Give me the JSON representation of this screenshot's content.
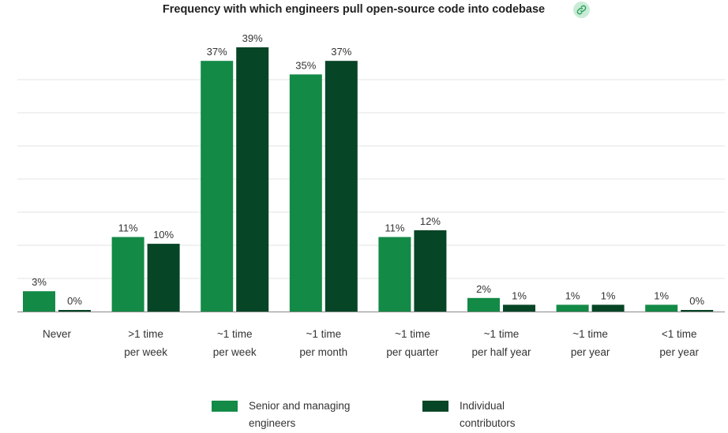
{
  "header": {
    "title": "Frequency with which engineers pull open-source code into codebase",
    "link_icon": "link-icon"
  },
  "colors": {
    "senior": "#138a46",
    "ic": "#064526",
    "grid": "#e3e3e3",
    "baseline": "#8a8a8a",
    "link_bg": "#c9ecd6",
    "link_icon": "#2a9d5c"
  },
  "legend": [
    {
      "lines": [
        "Senior and managing",
        "engineers"
      ],
      "color": "#138a46"
    },
    {
      "lines": [
        "Individual",
        "contributors"
      ],
      "color": "#064526"
    }
  ],
  "chart_data": {
    "type": "bar",
    "title": "Frequency with which engineers pull open-source code into codebase",
    "categories": [
      [
        "Never"
      ],
      [
        ">1 time",
        "per week"
      ],
      [
        "~1 time",
        "per week"
      ],
      [
        "~1 time",
        "per month"
      ],
      [
        "~1 time",
        "per quarter"
      ],
      [
        "~1 time",
        "per half year"
      ],
      [
        "~1 time",
        "per year"
      ],
      [
        "<1 time",
        "per year"
      ]
    ],
    "series": [
      {
        "name": "Senior and managing engineers",
        "values": [
          3,
          11,
          37,
          35,
          11,
          2,
          1,
          1
        ],
        "color": "#138a46"
      },
      {
        "name": "Individual contributors",
        "values": [
          0,
          10,
          39,
          37,
          12,
          1,
          1,
          0
        ],
        "color": "#064526"
      }
    ],
    "data_labels": [
      [
        "3%",
        "11%",
        "37%",
        "35%",
        "11%",
        "2%",
        "1%",
        "1%"
      ],
      [
        "0%",
        "10%",
        "39%",
        "37%",
        "12%",
        "1%",
        "1%",
        "0%"
      ]
    ],
    "ylim": [
      0,
      40
    ],
    "grid": true,
    "legend_position": "bottom"
  }
}
